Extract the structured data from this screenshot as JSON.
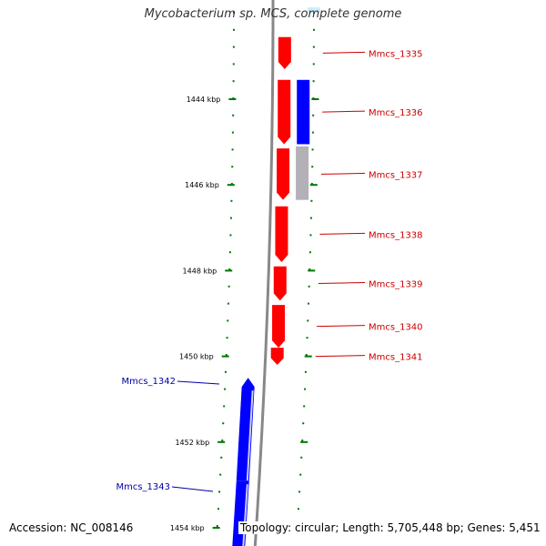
{
  "title": "Mycobacterium sp. MCS, complete genome",
  "footer": {
    "accession": "Accession: NC_008146",
    "summary": "Topology: circular; Length: 5,705,448 bp; Genes: 5,451"
  },
  "colors": {
    "forward_gene": "#ff0000",
    "reverse_gene": "#0000ff",
    "other_feature": "#b4b0b8",
    "backbone": "#888888",
    "tick": "#007700",
    "forward_label": "#cc0000",
    "reverse_label": "#0000aa"
  },
  "axis": {
    "unit": "kbp",
    "ticks": [
      {
        "kbp": 1444,
        "label": "1444 kbp"
      },
      {
        "kbp": 1446,
        "label": "1446 kbp"
      },
      {
        "kbp": 1448,
        "label": "1448 kbp"
      },
      {
        "kbp": 1450,
        "label": "1450 kbp"
      },
      {
        "kbp": 1452,
        "label": "1452 kbp"
      },
      {
        "kbp": 1454,
        "label": "1454 kbp"
      }
    ]
  },
  "features": {
    "forward": [
      {
        "name": "Mmcs_1335",
        "start_kbp": 1442.55,
        "end_kbp": 1443.3
      },
      {
        "name": "Mmcs_1336",
        "start_kbp": 1443.55,
        "end_kbp": 1445.05
      },
      {
        "name": "Mmcs_1337",
        "start_kbp": 1445.15,
        "end_kbp": 1446.35
      },
      {
        "name": "Mmcs_1338",
        "start_kbp": 1446.5,
        "end_kbp": 1447.8
      },
      {
        "name": "Mmcs_1339",
        "start_kbp": 1447.9,
        "end_kbp": 1448.7
      },
      {
        "name": "Mmcs_1340",
        "start_kbp": 1448.8,
        "end_kbp": 1449.8
      },
      {
        "name": "Mmcs_1341",
        "start_kbp": 1449.8,
        "end_kbp": 1450.2
      }
    ],
    "reverse": [
      {
        "name": "Mmcs_1342",
        "start_kbp": 1450.5,
        "end_kbp": 1452.9
      },
      {
        "name": "Mmcs_1343",
        "start_kbp": 1452.9,
        "end_kbp": 1454.6
      }
    ],
    "reverse_inner": [
      {
        "start_kbp": 1443.55,
        "end_kbp": 1445.05
      }
    ],
    "other": [
      {
        "start_kbp": 1445.1,
        "end_kbp": 1446.35
      }
    ]
  }
}
